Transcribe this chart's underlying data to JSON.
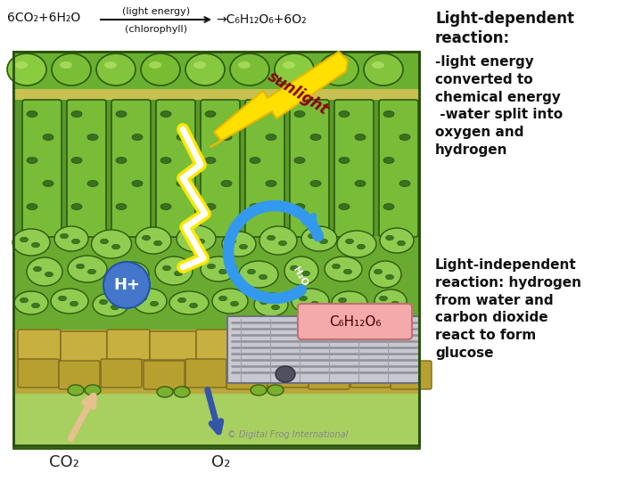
{
  "bg_color": "#ffffff",
  "equation_text": "6CO₂+6H₂O",
  "equation_arrow_label_top": "(light energy)",
  "equation_arrow_label_bottom": "(chlorophyll)",
  "equation_products": "C₆H₁₂O₆+6O₂",
  "sunlight_text": "sunlight",
  "sunlight_color": "#FFE000",
  "sunlight_text_color": "#8B0000",
  "h2o_label": "H₂O",
  "hplus_label": "H+",
  "co2_label": "CO₂",
  "o2_label": "O₂",
  "glucose_label": "C₆H₁₂O₆",
  "glucose_box_color": "#f4aaaa",
  "glucose_box_edge": "#c07070",
  "light_dep_title": "Light-dependent\nreaction:",
  "light_dep_body": "-light energy\nconverted to\nchemical energy\n -water split into\noxygen and\nhydrogen",
  "light_indep_title": "Light-independent\nreaction: hydrogen\nfrom water and\ncarbon dioxide\nreact to form\nglucose",
  "copyright_text": "© Digital Frog International",
  "blue_arrow_color": "#3399ee",
  "hplus_circle_color": "#4477cc",
  "co2_arrow_color": "#e8c090",
  "o2_arrow_color": "#3355aa"
}
